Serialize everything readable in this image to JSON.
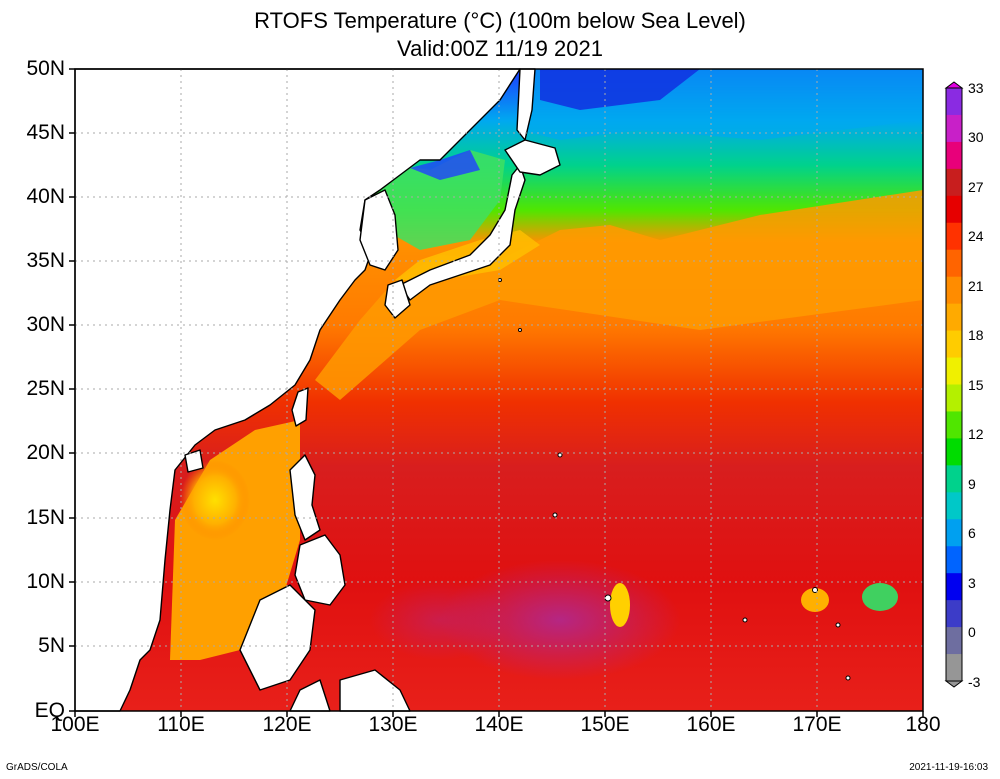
{
  "title": {
    "line1": "RTOFS Temperature (°C) (100m below Sea Level)",
    "line2": "Valid:00Z 11/19 2021"
  },
  "map": {
    "lat_labels": [
      "50N",
      "45N",
      "40N",
      "35N",
      "30N",
      "25N",
      "20N",
      "15N",
      "10N",
      "5N",
      "EQ"
    ],
    "lon_labels": [
      "100E",
      "110E",
      "120E",
      "130E",
      "140E",
      "150E",
      "160E",
      "170E",
      "180"
    ],
    "lat_range": [
      0,
      50
    ],
    "lon_range": [
      100,
      180
    ],
    "grid": "dotted",
    "land_color": "#ffffff",
    "coastline_color": "#000000"
  },
  "colorbar": {
    "labels": [
      "33",
      "30",
      "27",
      "24",
      "21",
      "18",
      "15",
      "12",
      "9",
      "6",
      "3",
      "0",
      "-3"
    ],
    "range": [
      -3,
      33
    ],
    "colors": [
      "#8a2be2",
      "#c820c8",
      "#e8007a",
      "#c81e1e",
      "#e60000",
      "#ff3200",
      "#ff6400",
      "#ff8c00",
      "#ffaa00",
      "#ffcc00",
      "#f0f000",
      "#b4f000",
      "#50e600",
      "#00dc00",
      "#00d28c",
      "#00c8c8",
      "#00a0f0",
      "#0064ff",
      "#0000f0",
      "#3c3cc8",
      "#6e6ea0",
      "#969696"
    ]
  },
  "footer": {
    "left": "GrADS/COLA",
    "right": "2021-11-19-16:03"
  }
}
